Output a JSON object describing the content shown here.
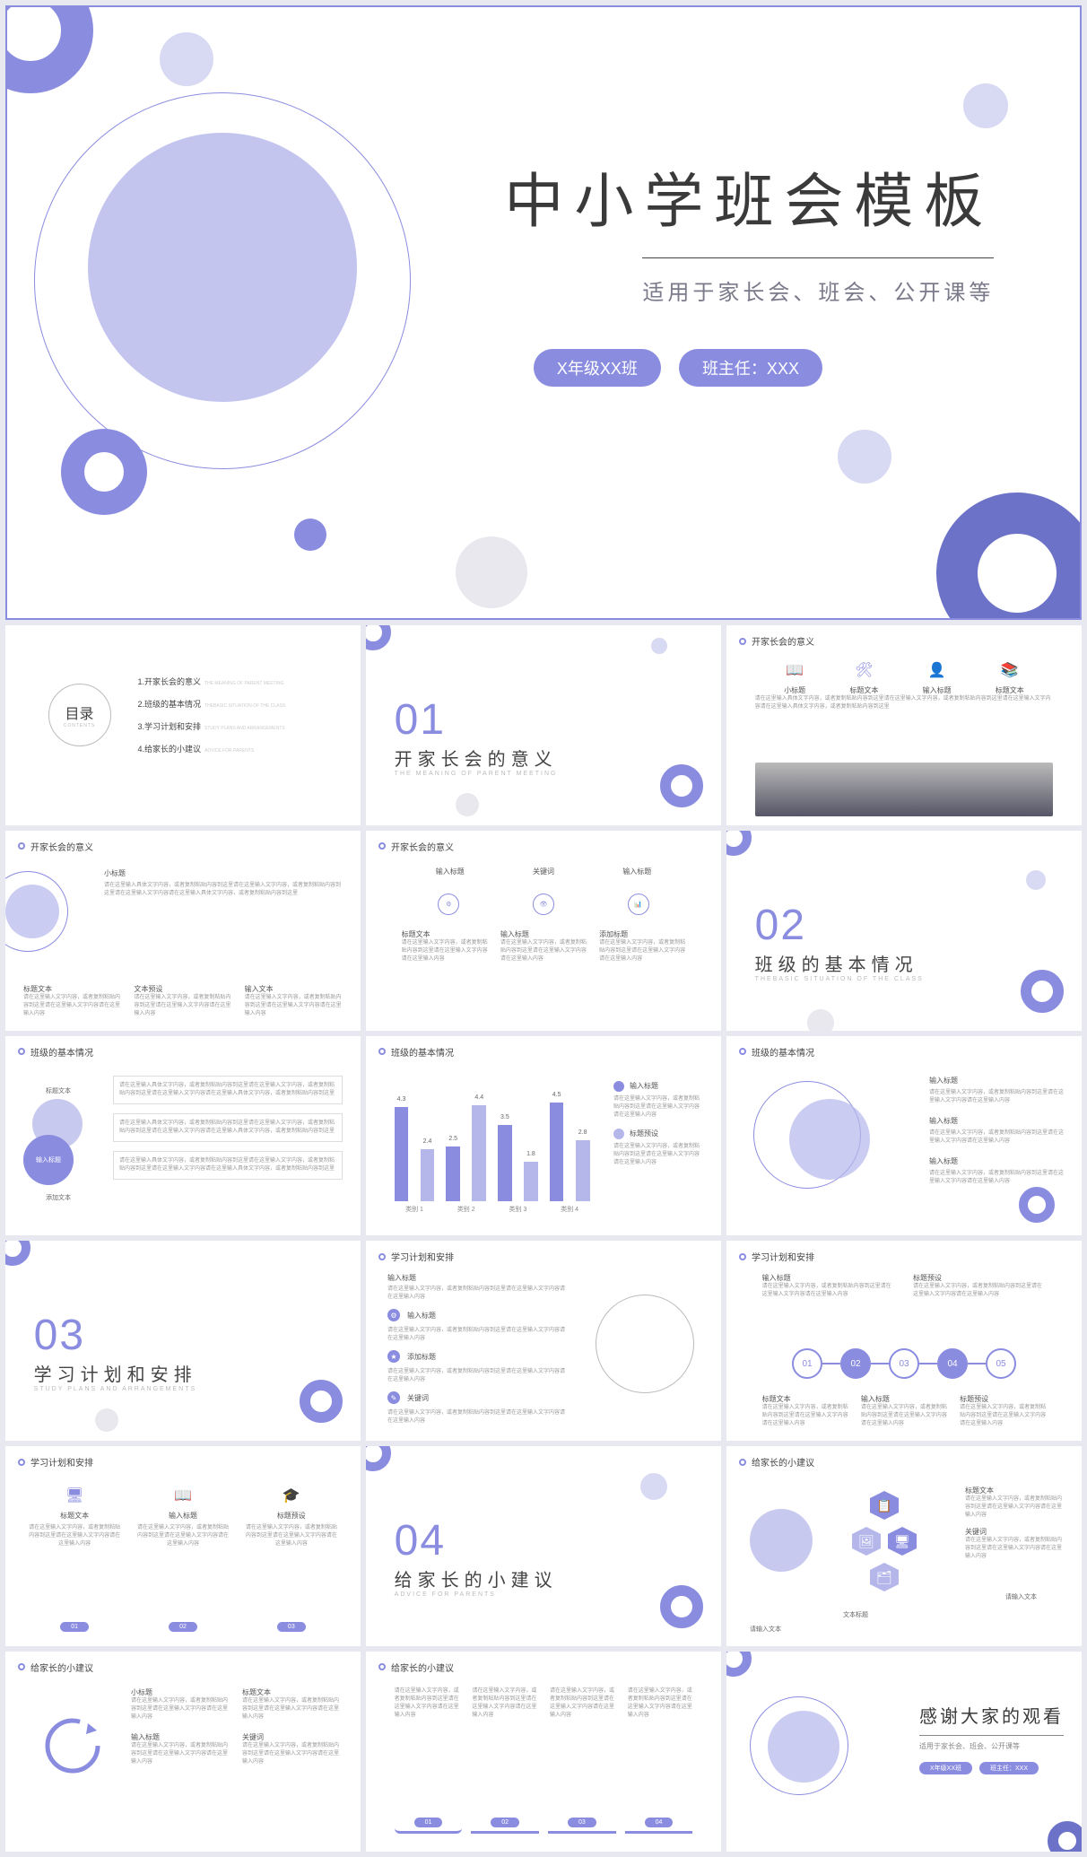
{
  "colors": {
    "primary": "#8a8ce0",
    "primary_light": "#b5b7eb",
    "primary_faint": "#d8d9f3",
    "gray_faint": "#e8e8ee",
    "text_dark": "#3a3a3a",
    "text_mid": "#7a7a8a",
    "text_light": "#999"
  },
  "hero": {
    "title": "中小学班会模板",
    "subtitle": "适用于家长会、班会、公开课等",
    "pill1": "X年级XX班",
    "pill2": "班主任：XXX"
  },
  "toc": {
    "heading": "目录",
    "heading_en": "CONTENTS",
    "items": [
      {
        "num": "1.",
        "zh": "开家长会的意义",
        "en": "THE MEANING OF PARENT MEETING"
      },
      {
        "num": "2.",
        "zh": "班级的基本情况",
        "en": "THEBASIC SITUATION OF THE CLASS"
      },
      {
        "num": "3.",
        "zh": "学习计划和安排",
        "en": "STUDY PLANS AND ARRANGEMENTS"
      },
      {
        "num": "4.",
        "zh": "给家长的小建议",
        "en": "ADVICE FOR PARENTS"
      }
    ]
  },
  "sections": [
    {
      "num": "01",
      "zh": "开家长会的意义",
      "en": "THE MEANING OF PARENT MEETING"
    },
    {
      "num": "02",
      "zh": "班级的基本情况",
      "en": "THEBASIC SITUATION OF THE CLASS"
    },
    {
      "num": "03",
      "zh": "学习计划和安排",
      "en": "STUDY PLANS AND ARRANGEMENTS"
    },
    {
      "num": "04",
      "zh": "给家长的小建议",
      "en": "ADVICE FOR PARENTS"
    }
  ],
  "headers": {
    "h1": "开家长会的意义",
    "h2": "班级的基本情况",
    "h3": "学习计划和安排",
    "h4": "给家长的小建议"
  },
  "labels": {
    "xiaobq": "小标题",
    "btwb": "标题文本",
    "wbys": "文本预设",
    "srwb": "输入文本",
    "srbt": "输入标题",
    "tjwb": "添加文本",
    "tjbt": "添加标题",
    "gjc": "关键词",
    "btys": "标题预设",
    "wbbt": "文本标题",
    "qsrwb": "请输入文本"
  },
  "body": "请在这里输入文字内容，或者复制粘贴内容到这里请在这里输入文字内容请在这里输入内容",
  "body_long": "请在这里输入具体文字内容，或者复制粘贴内容到这里请在这里输入文字内容，或者复制粘贴内容到这里请在这里输入文字内容请在这里输入具体文字内容，或者复制粘贴内容到这里",
  "chart": {
    "groups": [
      "类别 1",
      "类别 2",
      "类别 3",
      "类别 4"
    ],
    "series": [
      {
        "color": "#8a8ce0",
        "values": [
          4.3,
          2.5,
          3.5,
          4.5
        ]
      },
      {
        "color": "#b5b7eb",
        "values": [
          2.4,
          4.4,
          1.8,
          2.8
        ]
      }
    ],
    "ymax": 5
  },
  "steps": [
    "01",
    "02",
    "03",
    "04",
    "05"
  ],
  "steps4": [
    "01",
    "02",
    "03",
    "04"
  ],
  "pillrow": [
    "01",
    "02",
    "03"
  ],
  "closing": {
    "title": "感谢大家的观看",
    "subtitle": "适用于家长会、班会、公开课等",
    "pill1": "X年级XX班",
    "pill2": "班主任：XXX"
  }
}
